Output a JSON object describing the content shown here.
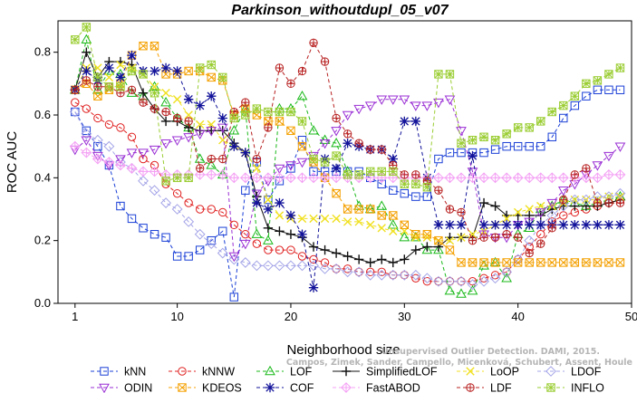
{
  "chart_data": {
    "type": "line",
    "title": "Parkinson_withoutdupl_05_v07",
    "xlabel": "Neighborhood size",
    "ylabel": "ROC AUC",
    "xlim": [
      -0.5,
      50
    ],
    "ylim": [
      0,
      0.9
    ],
    "xticks": [
      1,
      10,
      20,
      30,
      40,
      50
    ],
    "yticks": [
      0.0,
      0.2,
      0.4,
      0.6,
      0.8
    ],
    "ytick_labels": [
      "0.0",
      "0.2",
      "0.4",
      "0.6",
      "0.8"
    ],
    "grid": false,
    "legend_position": "bottom",
    "watermark": [
      "Unsupervised Outlier Detection. DAMI, 2015.",
      "Campos, Zimek, Sander, Campello, Micenková, Schubert, Assent, Houle"
    ],
    "x": [
      1,
      2,
      3,
      4,
      5,
      6,
      7,
      8,
      9,
      10,
      11,
      12,
      13,
      14,
      15,
      16,
      17,
      18,
      19,
      20,
      21,
      22,
      23,
      24,
      25,
      26,
      27,
      28,
      29,
      30,
      31,
      32,
      33,
      34,
      35,
      36,
      37,
      38,
      39,
      40,
      41,
      42,
      43,
      44,
      45,
      46,
      47,
      48,
      49
    ],
    "series": [
      {
        "name": "kNN",
        "color": "#1a3fd6",
        "marker": "square",
        "values": [
          0.61,
          0.55,
          0.5,
          0.44,
          0.31,
          0.27,
          0.24,
          0.22,
          0.21,
          0.15,
          0.15,
          0.17,
          0.2,
          0.23,
          0.02,
          0.36,
          0.45,
          0.33,
          0.39,
          0.43,
          0.52,
          0.42,
          0.42,
          0.42,
          0.42,
          0.42,
          0.4,
          0.38,
          0.36,
          0.35,
          0.34,
          0.34,
          0.46,
          0.48,
          0.48,
          0.48,
          0.48,
          0.49,
          0.5,
          0.5,
          0.5,
          0.5,
          0.53,
          0.59,
          0.63,
          0.66,
          0.68,
          0.68,
          0.68
        ]
      },
      {
        "name": "kNNW",
        "color": "#e02020",
        "marker": "circle",
        "values": [
          0.64,
          0.62,
          0.59,
          0.57,
          0.56,
          0.53,
          0.46,
          0.44,
          0.38,
          0.35,
          0.32,
          0.3,
          0.3,
          0.29,
          0.25,
          0.22,
          0.19,
          0.17,
          0.17,
          0.17,
          0.15,
          0.14,
          0.13,
          0.11,
          0.11,
          0.1,
          0.1,
          0.1,
          0.09,
          0.09,
          0.08,
          0.07,
          0.07,
          0.07,
          0.07,
          0.07,
          0.08,
          0.09,
          0.1,
          0.14,
          0.18,
          0.22,
          0.26,
          0.28,
          0.29,
          0.3,
          0.31,
          0.32,
          0.33
        ]
      },
      {
        "name": "LOF",
        "color": "#19b919",
        "marker": "triangle-up",
        "values": [
          0.68,
          0.84,
          0.68,
          0.74,
          0.73,
          0.67,
          0.66,
          0.69,
          0.64,
          0.59,
          0.56,
          0.46,
          0.44,
          0.41,
          0.55,
          0.62,
          0.22,
          0.2,
          0.62,
          0.62,
          0.66,
          0.55,
          0.52,
          0.51,
          0.42,
          0.31,
          0.3,
          0.31,
          0.25,
          0.21,
          0.21,
          0.17,
          0.17,
          0.04,
          0.03,
          0.04,
          0.12,
          0.13,
          0.08,
          0.22,
          0.24,
          0.3,
          0.31,
          0.33,
          0.32,
          0.31,
          0.32,
          0.33,
          0.34
        ]
      },
      {
        "name": "SimplifiedLOF",
        "color": "#111111",
        "marker": "plus",
        "values": [
          0.68,
          0.8,
          0.72,
          0.77,
          0.77,
          0.76,
          0.67,
          0.62,
          0.58,
          0.58,
          0.56,
          0.55,
          0.55,
          0.55,
          0.51,
          0.48,
          0.34,
          0.24,
          0.23,
          0.22,
          0.21,
          0.18,
          0.17,
          0.16,
          0.15,
          0.14,
          0.13,
          0.14,
          0.13,
          0.14,
          0.17,
          0.18,
          0.18,
          0.21,
          0.21,
          0.21,
          0.32,
          0.31,
          0.28,
          0.28,
          0.28,
          0.28,
          0.3,
          0.31,
          0.31,
          0.31,
          0.31,
          0.32,
          0.33
        ]
      },
      {
        "name": "LoOP",
        "color": "#f0e020",
        "marker": "x",
        "values": [
          0.68,
          0.75,
          0.75,
          0.72,
          0.76,
          0.75,
          0.73,
          0.69,
          0.67,
          0.65,
          0.6,
          0.57,
          0.57,
          0.52,
          0.5,
          0.48,
          0.43,
          0.33,
          0.28,
          0.27,
          0.27,
          0.27,
          0.27,
          0.27,
          0.26,
          0.26,
          0.25,
          0.24,
          0.23,
          0.23,
          0.21,
          0.21,
          0.2,
          0.2,
          0.21,
          0.22,
          0.23,
          0.25,
          0.27,
          0.29,
          0.3,
          0.31,
          0.31,
          0.32,
          0.33,
          0.33,
          0.33,
          0.34,
          0.34
        ]
      },
      {
        "name": "LDOF",
        "color": "#a4a4e8",
        "marker": "diamond",
        "values": [
          0.61,
          0.54,
          0.52,
          0.5,
          0.45,
          0.43,
          0.39,
          0.36,
          0.32,
          0.3,
          0.26,
          0.22,
          0.19,
          0.16,
          0.14,
          0.13,
          0.12,
          0.12,
          0.12,
          0.12,
          0.12,
          0.12,
          0.11,
          0.11,
          0.1,
          0.1,
          0.09,
          0.09,
          0.09,
          0.09,
          0.09,
          0.08,
          0.07,
          0.07,
          0.07,
          0.06,
          0.07,
          0.08,
          0.1,
          0.14,
          0.2,
          0.25,
          0.28,
          0.31,
          0.33,
          0.33,
          0.34,
          0.34,
          0.35
        ]
      },
      {
        "name": "ODIN",
        "color": "#9a2fd4",
        "marker": "triangle-down",
        "values": [
          0.49,
          0.52,
          0.47,
          0.44,
          0.46,
          0.48,
          0.48,
          0.49,
          0.51,
          0.52,
          0.53,
          0.54,
          0.55,
          0.56,
          0.15,
          0.19,
          0.35,
          0.39,
          0.43,
          0.44,
          0.45,
          0.47,
          0.51,
          0.55,
          0.6,
          0.62,
          0.63,
          0.65,
          0.65,
          0.65,
          0.63,
          0.63,
          0.64,
          0.65,
          0.55,
          0.42,
          0.22,
          0.21,
          0.21,
          0.25,
          0.26,
          0.29,
          0.32,
          0.36,
          0.38,
          0.41,
          0.44,
          0.47,
          0.5
        ]
      },
      {
        "name": "KDEOS",
        "color": "#f4a000",
        "marker": "square-x",
        "values": [
          0.68,
          0.7,
          0.66,
          0.68,
          0.7,
          0.79,
          0.82,
          0.82,
          0.73,
          0.73,
          0.74,
          0.74,
          0.72,
          0.71,
          0.6,
          0.62,
          0.6,
          0.58,
          0.58,
          0.55,
          0.5,
          0.45,
          0.4,
          0.35,
          0.3,
          0.3,
          0.3,
          0.28,
          0.28,
          0.25,
          0.22,
          0.22,
          0.2,
          0.17,
          0.13,
          0.13,
          0.13,
          0.13,
          0.13,
          0.13,
          0.13,
          0.13,
          0.13,
          0.13,
          0.13,
          0.13,
          0.13,
          0.13,
          0.13
        ]
      },
      {
        "name": "COF",
        "color": "#12129a",
        "marker": "asterisk",
        "values": [
          0.68,
          0.74,
          0.71,
          0.75,
          0.72,
          0.79,
          0.74,
          0.74,
          0.75,
          0.74,
          0.65,
          0.63,
          0.66,
          0.59,
          0.5,
          0.48,
          0.32,
          0.3,
          0.32,
          0.28,
          0.22,
          0.05,
          0.46,
          0.43,
          0.51,
          0.5,
          0.49,
          0.49,
          0.46,
          0.58,
          0.58,
          0.4,
          0.25,
          0.25,
          0.25,
          0.47,
          0.25,
          0.25,
          0.25,
          0.25,
          0.25,
          0.25,
          0.25,
          0.25,
          0.25,
          0.25,
          0.25,
          0.25,
          0.25
        ]
      },
      {
        "name": "FastABOD",
        "color": "#f4a0f4",
        "marker": "diamond-plus",
        "values": [
          0.5,
          0.48,
          0.46,
          0.45,
          0.44,
          0.43,
          0.42,
          0.42,
          0.41,
          0.41,
          0.41,
          0.41,
          0.41,
          0.41,
          0.4,
          0.4,
          0.4,
          0.4,
          0.4,
          0.4,
          0.4,
          0.4,
          0.4,
          0.4,
          0.4,
          0.4,
          0.4,
          0.4,
          0.4,
          0.4,
          0.4,
          0.4,
          0.4,
          0.4,
          0.4,
          0.4,
          0.4,
          0.4,
          0.4,
          0.4,
          0.4,
          0.4,
          0.4,
          0.4,
          0.4,
          0.4,
          0.4,
          0.41,
          0.41
        ]
      },
      {
        "name": "LDF",
        "color": "#b82020",
        "marker": "circle-plus",
        "values": [
          0.68,
          0.71,
          0.69,
          0.69,
          0.67,
          0.68,
          0.64,
          0.62,
          0.61,
          0.59,
          0.58,
          0.43,
          0.46,
          0.46,
          0.61,
          0.64,
          0.46,
          0.56,
          0.75,
          0.7,
          0.74,
          0.83,
          0.77,
          0.59,
          0.54,
          0.51,
          0.49,
          0.49,
          0.44,
          0.41,
          0.41,
          0.39,
          0.36,
          0.3,
          0.29,
          0.2,
          0.21,
          0.21,
          0.22,
          0.21,
          0.16,
          0.19,
          0.24,
          0.33,
          0.41,
          0.43,
          0.32,
          0.32,
          0.32
        ]
      },
      {
        "name": "INFLO",
        "color": "#9acd32",
        "marker": "star-box",
        "values": [
          0.84,
          0.88,
          0.72,
          0.69,
          0.69,
          0.74,
          0.73,
          0.67,
          0.39,
          0.4,
          0.4,
          0.75,
          0.76,
          0.72,
          0.59,
          0.6,
          0.62,
          0.61,
          0.61,
          0.61,
          0.58,
          0.46,
          0.45,
          0.47,
          0.41,
          0.41,
          0.42,
          0.42,
          0.42,
          0.38,
          0.38,
          0.37,
          0.73,
          0.73,
          0.51,
          0.52,
          0.53,
          0.52,
          0.54,
          0.56,
          0.56,
          0.58,
          0.61,
          0.63,
          0.66,
          0.7,
          0.71,
          0.73,
          0.75
        ]
      }
    ]
  }
}
